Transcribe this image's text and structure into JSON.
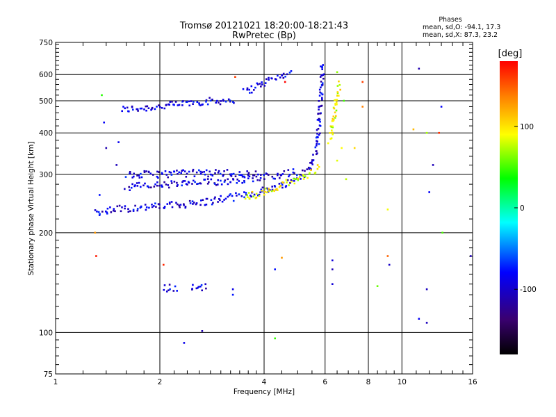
{
  "chart_data": {
    "type": "scatter",
    "title": "Tromsø 20121021 18:20:00-18:21:43",
    "subtitle": "RwPretec (Bp)",
    "xlabel": "Frequency [MHz]",
    "ylabel": "Stationary phase Virtual Height [km]",
    "x_scale": "log",
    "y_scale": "log",
    "xlim": [
      1,
      16
    ],
    "ylim": [
      75,
      750
    ],
    "x_ticks": [
      1,
      2,
      4,
      6,
      8,
      10,
      16
    ],
    "x_tick_labels": [
      "1",
      "2",
      "4",
      "6",
      "8",
      "10",
      "16"
    ],
    "y_ticks": [
      75,
      100,
      200,
      300,
      400,
      500,
      600,
      750
    ],
    "y_tick_labels": [
      "75",
      "100",
      "200",
      "300",
      "400",
      "500",
      "600",
      "750"
    ],
    "grid_x": [
      2,
      4,
      6,
      8,
      10
    ],
    "grid_y": [
      100,
      200,
      300,
      400,
      500,
      600
    ],
    "legend": {
      "heading": "Phases",
      "lines": [
        "mean, sd,O: -94.1, 17.3",
        "mean, sd,X: 87.3, 23.2"
      ]
    },
    "colorbar": {
      "label": "[deg]",
      "range": [
        -180,
        180
      ],
      "ticks": [
        100,
        0,
        -100
      ],
      "tick_labels": [
        "100",
        "0",
        "-100"
      ]
    },
    "series": [
      {
        "mode": "O",
        "color_phase": -94.1,
        "trace_segments": [
          [
            [
              1.55,
              470
            ],
            [
              2.0,
              480
            ],
            [
              2.5,
              495
            ],
            [
              3.0,
              500
            ],
            [
              3.3,
              505
            ]
          ],
          [
            [
              3.5,
              530
            ],
            [
              4.2,
              580
            ],
            [
              4.8,
              610
            ]
          ],
          [
            [
              1.3,
              230
            ],
            [
              1.5,
              236
            ],
            [
              2.0,
              240
            ],
            [
              2.6,
              246
            ],
            [
              3.2,
              255
            ],
            [
              4.0,
              268
            ],
            [
              4.8,
              285
            ],
            [
              5.4,
              310
            ],
            [
              5.7,
              360
            ],
            [
              5.8,
              460
            ],
            [
              5.9,
              650
            ]
          ],
          [
            [
              1.6,
              275
            ],
            [
              2.2,
              280
            ],
            [
              3.0,
              285
            ],
            [
              4.0,
              295
            ],
            [
              5.0,
              305
            ]
          ],
          [
            [
              1.6,
              298
            ],
            [
              2.3,
              302
            ],
            [
              3.0,
              303
            ],
            [
              3.8,
              300
            ]
          ],
          [
            [
              2.05,
              136
            ],
            [
              2.25,
              137
            ]
          ],
          [
            [
              2.45,
              136
            ],
            [
              2.75,
              137
            ]
          ]
        ],
        "points": [
          [
            1.34,
            260
          ],
          [
            1.38,
            430
          ],
          [
            1.4,
            360
          ],
          [
            1.52,
            375
          ],
          [
            1.5,
            320
          ],
          [
            3.25,
            135
          ],
          [
            3.25,
            130
          ],
          [
            4.3,
            155
          ],
          [
            6.3,
            165
          ],
          [
            6.3,
            155
          ],
          [
            6.3,
            140
          ],
          [
            9.2,
            160
          ],
          [
            11.2,
            625
          ],
          [
            11.2,
            110
          ],
          [
            11.8,
            107
          ],
          [
            11.8,
            135
          ],
          [
            12.3,
            320
          ],
          [
            12.0,
            265
          ],
          [
            13.0,
            480
          ],
          [
            15.8,
            170
          ],
          [
            2.35,
            93
          ],
          [
            2.65,
            101
          ]
        ]
      },
      {
        "mode": "X",
        "color_phase": 87.3,
        "trace_segments": [
          [
            [
              3.5,
              255
            ],
            [
              4.0,
              265
            ],
            [
              4.6,
              280
            ],
            [
              5.2,
              295
            ],
            [
              5.8,
              315
            ]
          ],
          [
            [
              6.2,
              380
            ],
            [
              6.4,
              460
            ],
            [
              6.6,
              570
            ]
          ]
        ],
        "points": [
          [
            6.9,
            290
          ],
          [
            6.5,
            330
          ],
          [
            6.7,
            360
          ]
        ]
      },
      {
        "mode": "noise",
        "points": [
          [
            1.31,
            170
          ],
          [
            1.36,
            520
          ],
          [
            1.3,
            200
          ],
          [
            2.05,
            160
          ],
          [
            4.5,
            168
          ],
          [
            4.3,
            96
          ],
          [
            6.5,
            610
          ],
          [
            6.8,
            500
          ],
          [
            7.3,
            360
          ],
          [
            7.7,
            570
          ],
          [
            7.7,
            480
          ],
          [
            8.5,
            138
          ],
          [
            9.1,
            170
          ],
          [
            9.1,
            235
          ],
          [
            10.8,
            410
          ],
          [
            11.8,
            400
          ],
          [
            12.8,
            400
          ],
          [
            13.1,
            200
          ],
          [
            3.3,
            590
          ],
          [
            4.6,
            570
          ]
        ]
      }
    ]
  }
}
